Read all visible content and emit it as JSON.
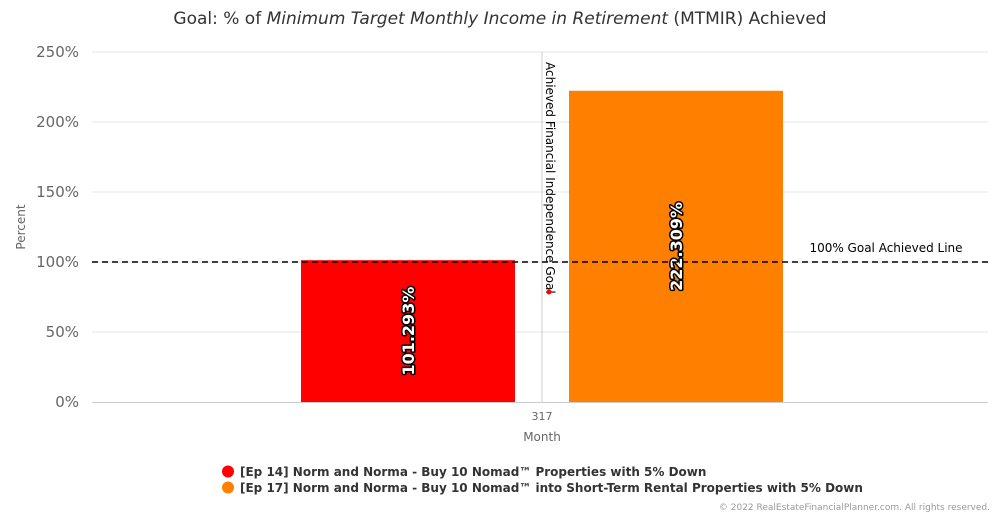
{
  "chart_data": {
    "type": "bar",
    "title_parts": [
      {
        "text": "Goal: % of ",
        "italic": false
      },
      {
        "text": "Minimum Target Monthly Income in Retirement",
        "italic": true
      },
      {
        "text": " (MTMIR) Achieved",
        "italic": false
      }
    ],
    "categories": [
      "317"
    ],
    "xlabel": "Month",
    "ylabel": "Percent",
    "ylim": [
      0,
      250
    ],
    "yticks": [
      0,
      50,
      100,
      150,
      200,
      250
    ],
    "ytick_suffix": "%",
    "grid": true,
    "series": [
      {
        "name": "[Ep 14] Norm and Norma - Buy 10 Nomad™ Properties with 5% Down",
        "values": [
          101.293
        ],
        "label": "101.293%",
        "color": "#ff0000"
      },
      {
        "name": "[Ep 17] Norm and Norma - Buy 10 Nomad™ into Short-Term Rental Properties with 5% Down",
        "values": [
          222.309
        ],
        "label": "222.309%",
        "color": "#ff8000"
      }
    ],
    "reference_line": {
      "value": 100,
      "label": "100% Goal Achieved Line"
    },
    "vertical_marker": {
      "label": "Achieved Financial Independence Goal",
      "marker_color": "#ff0000"
    },
    "legend_position": "bottom-center",
    "credit": "© 2022 RealEstateFinancialPlanner.com. All rights reserved."
  }
}
